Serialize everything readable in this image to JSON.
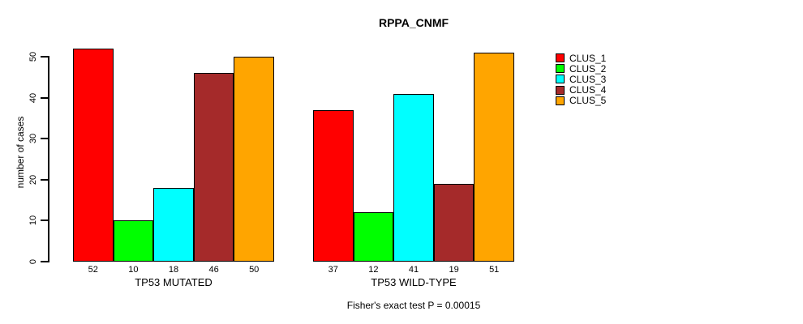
{
  "chart_data": {
    "type": "bar",
    "title": "RPPA_CNMF",
    "xlabel": "",
    "ylabel": "number of cases",
    "ylim": [
      0,
      50
    ],
    "yticks": [
      0,
      10,
      20,
      30,
      40,
      50
    ],
    "grid": false,
    "legend_position": "right",
    "bar_value_labels_shown": true,
    "categories": [
      "TP53 MUTATED",
      "TP53 WILD-TYPE"
    ],
    "series": [
      {
        "name": "CLUS_1",
        "color": "#ff0000",
        "values": [
          52,
          37
        ]
      },
      {
        "name": "CLUS_2",
        "color": "#00ff00",
        "values": [
          10,
          12
        ]
      },
      {
        "name": "CLUS_3",
        "color": "#00ffff",
        "values": [
          18,
          41
        ]
      },
      {
        "name": "CLUS_4",
        "color": "#a52a2a",
        "values": [
          46,
          19
        ]
      },
      {
        "name": "CLUS_5",
        "color": "#ffa500",
        "values": [
          50,
          51
        ]
      }
    ],
    "annotation": "Fisher's exact test P = 0.00015",
    "axis_color": "#000000",
    "bar_border_color": "#000000"
  }
}
